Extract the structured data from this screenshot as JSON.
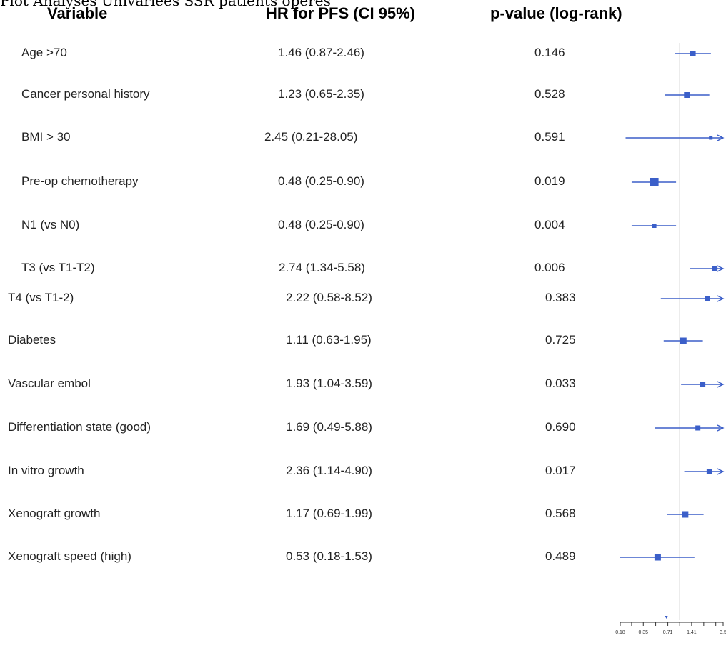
{
  "caption": "Plot Analyses Univariees SSR patients operes",
  "headers": {
    "variable": "Variable",
    "hr": "HR for PFS (CI 95%)",
    "pvalue": "p-value (log-rank)"
  },
  "rows": [
    {
      "variable": "Age >70",
      "hr_text": "1.46 (0.87-2.46)",
      "p_text": "0.146"
    },
    {
      "variable": "Cancer personal history",
      "hr_text": "1.23 (0.65-2.35)",
      "p_text": "0.528"
    },
    {
      "variable": "BMI > 30",
      "hr_text": "2.45 (0.21-28.05)",
      "p_text": "0.591"
    },
    {
      "variable": "Pre-op chemotherapy",
      "hr_text": "0.48 (0.25-0.90)",
      "p_text": "0.019"
    },
    {
      "variable": "N1 (vs N0)",
      "hr_text": "0.48 (0.25-0.90)",
      "p_text": "0.004"
    },
    {
      "variable": "T3 (vs T1-T2)",
      "hr_text": "2.74 (1.34-5.58)",
      "p_text": "0.006"
    },
    {
      "variable": "T4 (vs T1-2)",
      "hr_text": "2.22 (0.58-8.52)",
      "p_text": "0.383"
    },
    {
      "variable": "Diabetes",
      "hr_text": "1.11 (0.63-1.95)",
      "p_text": "0.725"
    },
    {
      "variable": "Vascular embol",
      "hr_text": "1.93 (1.04-3.59)",
      "p_text": "0.033"
    },
    {
      "variable": "Differentiation state (good)",
      "hr_text": "1.69 (0.49-5.88)",
      "p_text": "0.690"
    },
    {
      "variable": "In vitro growth",
      "hr_text": "2.36 (1.14-4.90)",
      "p_text": "0.017"
    },
    {
      "variable": "Xenograft growth",
      "hr_text": "1.17 (0.69-1.99)",
      "p_text": "0.568"
    },
    {
      "variable": "Xenograft speed (high)",
      "hr_text": "0.53 (0.18-1.53)",
      "p_text": "0.489"
    }
  ],
  "chart_data": {
    "type": "forest",
    "x_scale": "log",
    "reference_line": 1,
    "ticks": [
      0.18,
      0.35,
      0.71,
      1.41,
      3.5
    ],
    "tick_labels": [
      "0.18",
      "0.35",
      "0.71",
      "1.41",
      "3.5"
    ],
    "xlim": [
      0.18,
      3.5
    ],
    "series_color": "#3b5fc9",
    "points": [
      {
        "label": "Age >70",
        "hr": 1.46,
        "lo": 0.87,
        "hi": 2.46
      },
      {
        "label": "Cancer personal history",
        "hr": 1.23,
        "lo": 0.65,
        "hi": 2.35
      },
      {
        "label": "BMI > 30",
        "hr": 2.45,
        "lo": 0.21,
        "hi": 28.05
      },
      {
        "label": "Pre-op chemotherapy",
        "hr": 0.48,
        "lo": 0.25,
        "hi": 0.9
      },
      {
        "label": "N1 (vs N0)",
        "hr": 0.48,
        "lo": 0.25,
        "hi": 0.9
      },
      {
        "label": "T3 (vs T1-T2)",
        "hr": 2.74,
        "lo": 1.34,
        "hi": 5.58
      },
      {
        "label": "T4 (vs T1-2)",
        "hr": 2.22,
        "lo": 0.58,
        "hi": 8.52
      },
      {
        "label": "Diabetes",
        "hr": 1.11,
        "lo": 0.63,
        "hi": 1.95
      },
      {
        "label": "Vascular embol",
        "hr": 1.93,
        "lo": 1.04,
        "hi": 3.59
      },
      {
        "label": "Differentiation state (good)",
        "hr": 1.69,
        "lo": 0.49,
        "hi": 5.88
      },
      {
        "label": "In vitro growth",
        "hr": 2.36,
        "lo": 1.14,
        "hi": 4.9
      },
      {
        "label": "Xenograft growth",
        "hr": 1.17,
        "lo": 0.69,
        "hi": 1.99
      },
      {
        "label": "Xenograft speed (high)",
        "hr": 0.53,
        "lo": 0.18,
        "hi": 1.53
      }
    ]
  }
}
